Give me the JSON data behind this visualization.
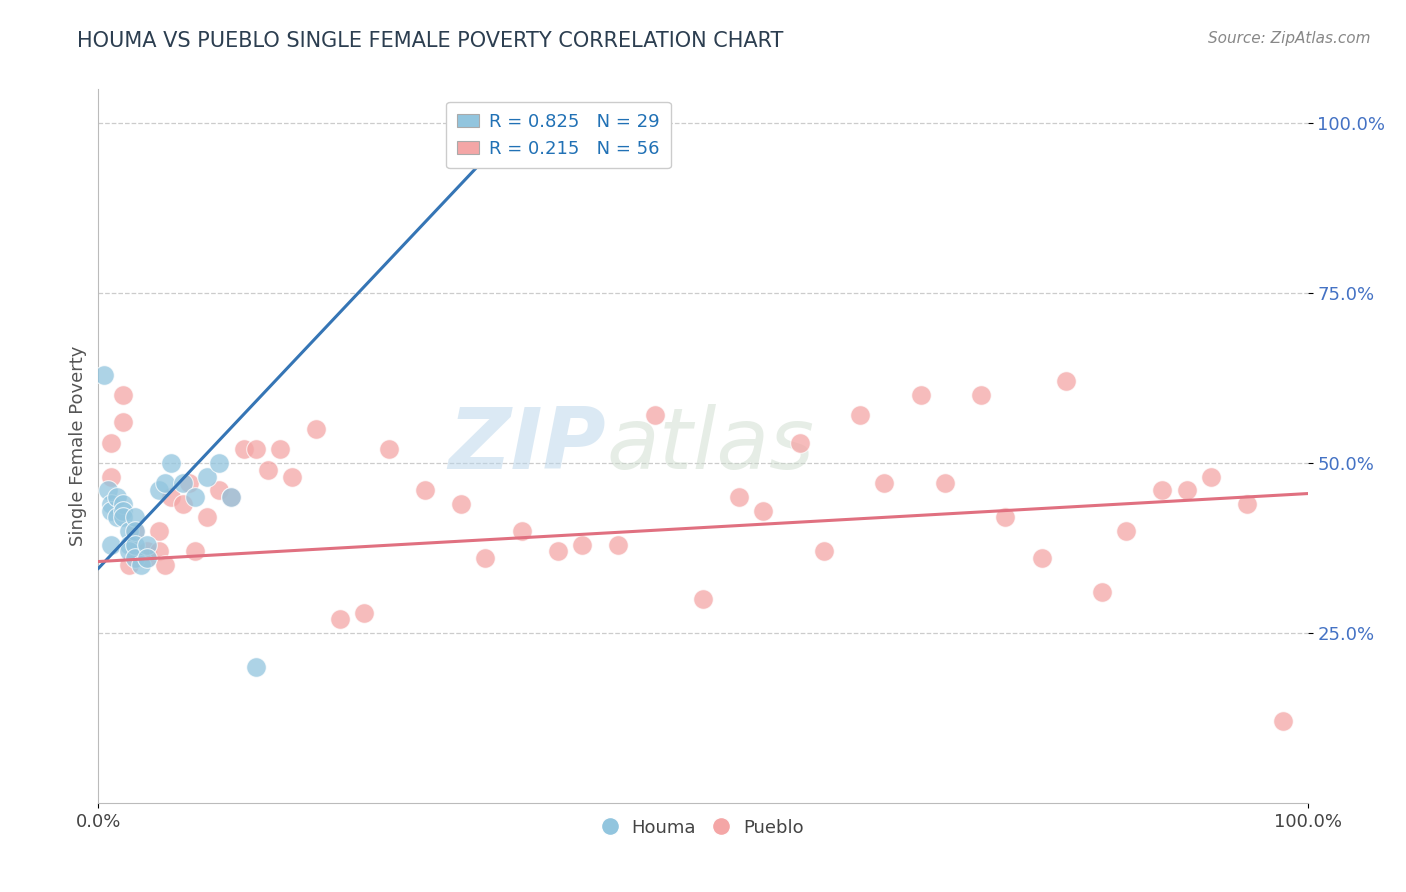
{
  "title": "HOUMA VS PUEBLO SINGLE FEMALE POVERTY CORRELATION CHART",
  "source": "Source: ZipAtlas.com",
  "ylabel": "Single Female Poverty",
  "houma_R": 0.825,
  "houma_N": 29,
  "pueblo_R": 0.215,
  "pueblo_N": 56,
  "houma_color": "#92c5de",
  "pueblo_color": "#f4a6a6",
  "houma_line_color": "#3575b5",
  "pueblo_line_color": "#e07080",
  "background_color": "#ffffff",
  "watermark_zip": "ZIP",
  "watermark_atlas": "atlas",
  "xlim": [
    0,
    1
  ],
  "ylim": [
    0,
    1
  ],
  "houma_x": [
    0.005,
    0.008,
    0.01,
    0.01,
    0.01,
    0.015,
    0.015,
    0.02,
    0.02,
    0.02,
    0.025,
    0.025,
    0.025,
    0.03,
    0.03,
    0.03,
    0.03,
    0.035,
    0.04,
    0.04,
    0.05,
    0.055,
    0.06,
    0.07,
    0.08,
    0.09,
    0.1,
    0.11,
    0.13
  ],
  "houma_y": [
    0.63,
    0.46,
    0.44,
    0.43,
    0.38,
    0.45,
    0.42,
    0.44,
    0.43,
    0.42,
    0.4,
    0.38,
    0.37,
    0.42,
    0.4,
    0.38,
    0.36,
    0.35,
    0.38,
    0.36,
    0.46,
    0.47,
    0.5,
    0.47,
    0.45,
    0.48,
    0.5,
    0.45,
    0.2
  ],
  "pueblo_x": [
    0.01,
    0.01,
    0.02,
    0.02,
    0.025,
    0.03,
    0.03,
    0.04,
    0.04,
    0.05,
    0.05,
    0.055,
    0.06,
    0.07,
    0.075,
    0.08,
    0.09,
    0.1,
    0.11,
    0.12,
    0.13,
    0.14,
    0.15,
    0.16,
    0.18,
    0.2,
    0.22,
    0.24,
    0.27,
    0.3,
    0.32,
    0.35,
    0.38,
    0.4,
    0.43,
    0.46,
    0.5,
    0.53,
    0.55,
    0.58,
    0.6,
    0.63,
    0.65,
    0.68,
    0.7,
    0.73,
    0.75,
    0.78,
    0.8,
    0.83,
    0.85,
    0.88,
    0.9,
    0.92,
    0.95,
    0.98
  ],
  "pueblo_y": [
    0.53,
    0.48,
    0.6,
    0.56,
    0.35,
    0.4,
    0.37,
    0.37,
    0.36,
    0.4,
    0.37,
    0.35,
    0.45,
    0.44,
    0.47,
    0.37,
    0.42,
    0.46,
    0.45,
    0.52,
    0.52,
    0.49,
    0.52,
    0.48,
    0.55,
    0.27,
    0.28,
    0.52,
    0.46,
    0.44,
    0.36,
    0.4,
    0.37,
    0.38,
    0.38,
    0.57,
    0.3,
    0.45,
    0.43,
    0.53,
    0.37,
    0.57,
    0.47,
    0.6,
    0.47,
    0.6,
    0.42,
    0.36,
    0.62,
    0.31,
    0.4,
    0.46,
    0.46,
    0.48,
    0.44,
    0.12
  ],
  "houma_trend_x": [
    0.0,
    0.35
  ],
  "houma_trend_y": [
    0.345,
    1.005
  ],
  "pueblo_trend_x": [
    0.0,
    1.0
  ],
  "pueblo_trend_y": [
    0.355,
    0.455
  ]
}
